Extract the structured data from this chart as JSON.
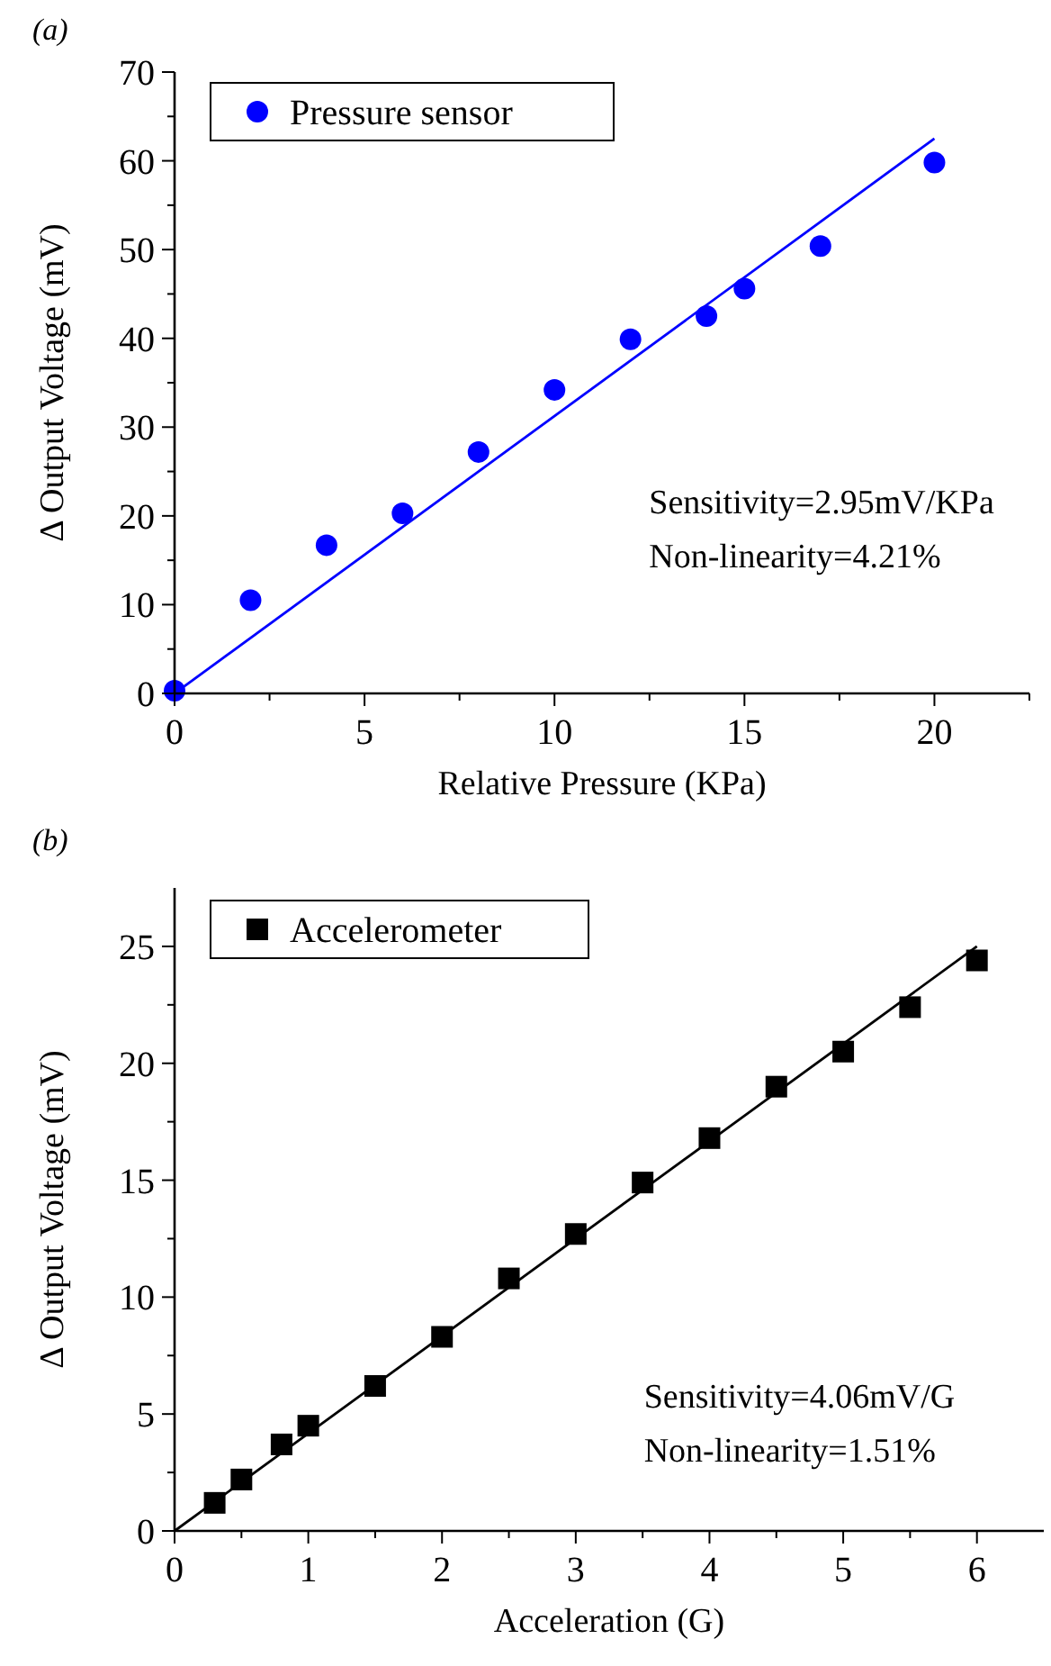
{
  "chart_data": [
    {
      "type": "scatter",
      "xlabel": "Relative Pressure (KPa)",
      "ylabel": "Δ Output Voltage (mV)",
      "annotations": [
        "(a)",
        "Sensitivity=2.95mV/KPa",
        "Non-linearity=4.21%"
      ],
      "xlim": [
        0,
        22.5
      ],
      "ylim": [
        0,
        70
      ],
      "xticks": [
        0,
        {
          "value": 2.5,
          "label": null
        },
        5,
        {
          "value": 7.5,
          "label": null
        },
        10,
        {
          "value": 12.5,
          "label": null
        },
        15,
        {
          "value": 17.5,
          "label": null
        },
        20,
        {
          "value": 22.5,
          "label": null
        }
      ],
      "yticks": [
        0,
        {
          "value": 5,
          "label": null
        },
        10,
        {
          "value": 15,
          "label": null
        },
        20,
        {
          "value": 25,
          "label": null
        },
        30,
        {
          "value": 35,
          "label": null
        },
        40,
        {
          "value": 45,
          "label": null
        },
        50,
        {
          "value": 55,
          "label": null
        },
        60,
        {
          "value": 65,
          "label": null
        },
        70
      ],
      "legend": "top left",
      "grid": false,
      "series": [
        {
          "name": "Pressure sensor",
          "type": "scatter",
          "marker": "circle",
          "color": "#0000ff",
          "x": [
            0,
            2,
            4,
            6,
            8,
            10,
            12,
            14,
            15,
            17,
            20
          ],
          "values": [
            0.3,
            10.5,
            16.7,
            20.3,
            27.2,
            34.2,
            39.9,
            42.5,
            45.6,
            50.4,
            59.8
          ]
        },
        {
          "type": "line",
          "marker": "none",
          "line_style": "solid",
          "color": "#0000ff",
          "x": [
            0,
            20
          ],
          "values": [
            0,
            62.5
          ]
        }
      ]
    },
    {
      "type": "scatter",
      "xlabel": "Acceleration (G)",
      "ylabel": "Δ Output Voltage (mV)",
      "annotations": [
        "(b)",
        "Sensitivity=4.06mV/G",
        "Non-linearity=1.51%"
      ],
      "xlim": [
        0,
        6.5
      ],
      "ylim": [
        0,
        27.5
      ],
      "xticks": [
        0,
        {
          "value": 0.5,
          "label": null
        },
        1,
        {
          "value": 1.5,
          "label": null
        },
        2,
        {
          "value": 2.5,
          "label": null
        },
        3,
        {
          "value": 3.5,
          "label": null
        },
        4,
        {
          "value": 4.5,
          "label": null
        },
        5,
        {
          "value": 5.5,
          "label": null
        },
        6
      ],
      "yticks": [
        0,
        {
          "value": 2.5,
          "label": null
        },
        5,
        {
          "value": 7.5,
          "label": null
        },
        10,
        {
          "value": 12.5,
          "label": null
        },
        15,
        {
          "value": 17.5,
          "label": null
        },
        20,
        {
          "value": 22.5,
          "label": null
        },
        25
      ],
      "legend": "top left",
      "grid": false,
      "series": [
        {
          "name": "Accelerometer",
          "type": "scatter",
          "marker": "square",
          "color": "#000000",
          "x": [
            0.3,
            0.5,
            0.8,
            1,
            1.5,
            2,
            2.5,
            3,
            3.5,
            4,
            4.5,
            5,
            5.5,
            6
          ],
          "values": [
            1.2,
            2.2,
            3.7,
            4.5,
            6.2,
            8.3,
            10.8,
            12.7,
            14.9,
            16.8,
            19,
            20.5,
            22.4,
            24.4
          ]
        },
        {
          "type": "line",
          "marker": "none",
          "line_style": "solid",
          "color": "#000000",
          "x": [
            0,
            6
          ],
          "values": [
            0,
            25
          ]
        }
      ]
    }
  ]
}
